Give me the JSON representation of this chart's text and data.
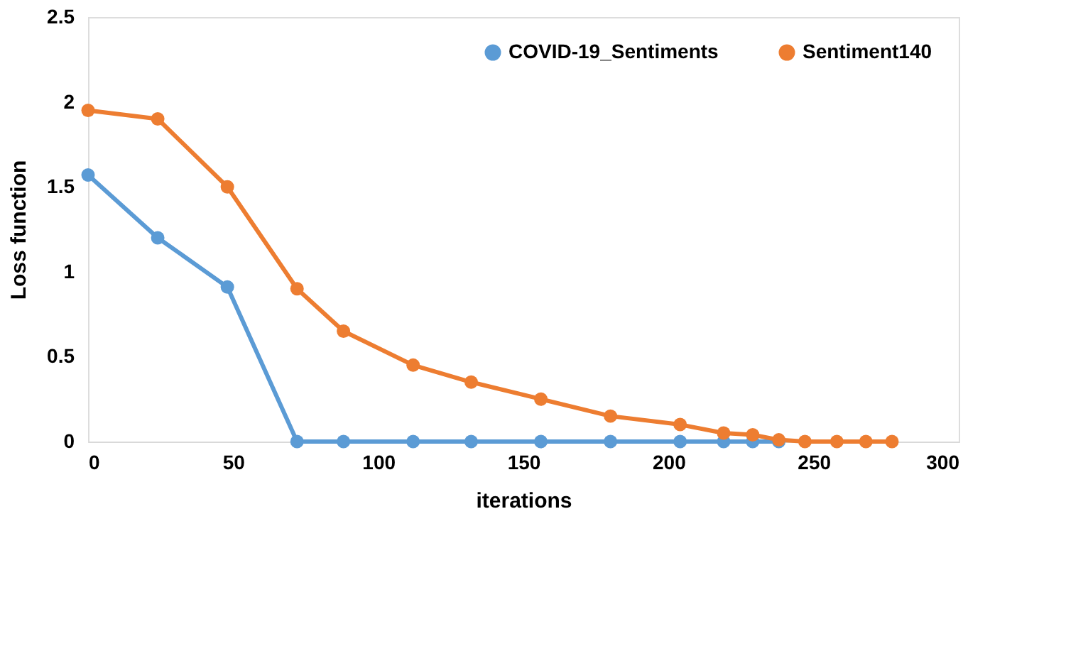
{
  "chart_data": {
    "type": "line",
    "xlabel": "iterations",
    "ylabel": "Loss function",
    "xlim": [
      0,
      300
    ],
    "xticks": [
      0,
      50,
      100,
      150,
      200,
      250,
      300
    ],
    "ylim": [
      0,
      2.5
    ],
    "yticks": [
      0,
      0.5,
      1,
      1.5,
      2,
      2.5
    ],
    "grid": false,
    "legend": "top right",
    "marker": "circle",
    "line_style": "solid",
    "series": [
      {
        "name": "COVID-19_Sentiments",
        "color": "#5b9bd5",
        "x": [
          0,
          24,
          48,
          72,
          88,
          112,
          132,
          156,
          180,
          204,
          219,
          229,
          238
        ],
        "values": [
          1.57,
          1.2,
          0.91,
          0,
          0,
          0,
          0,
          0,
          0,
          0,
          0,
          0,
          0
        ]
      },
      {
        "name": "Sentiment140",
        "color": "#ed7d31",
        "x": [
          0,
          24,
          48,
          72,
          88,
          112,
          132,
          156,
          180,
          204,
          219,
          229,
          238,
          247,
          258,
          268,
          277
        ],
        "values": [
          1.95,
          1.9,
          1.5,
          0.9,
          0.65,
          0.45,
          0.35,
          0.25,
          0.15,
          0.1,
          0.05,
          0.04,
          0.01,
          0,
          0,
          0,
          0
        ]
      }
    ]
  }
}
